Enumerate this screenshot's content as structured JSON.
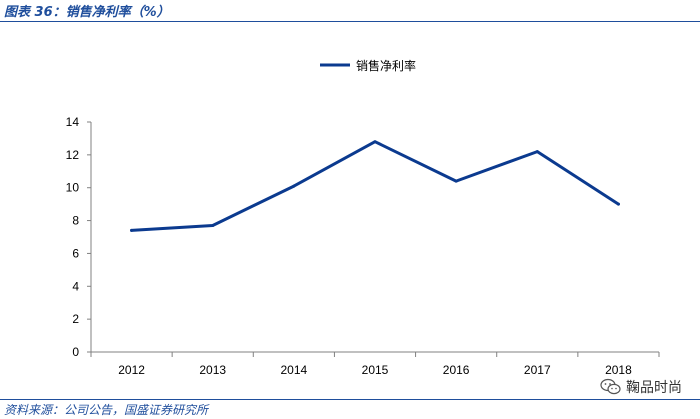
{
  "header": {
    "caption": "图表 36：销售净利率（%）"
  },
  "footer": {
    "source": "资料来源：公司公告，国盛证券研究所",
    "watermark": "鞠品时尚",
    "watermark_icon": "wechat-icon"
  },
  "chart_data": {
    "type": "line",
    "categories": [
      "2012",
      "2013",
      "2014",
      "2015",
      "2016",
      "2017",
      "2018"
    ],
    "series": [
      {
        "name": "销售净利率",
        "values": [
          7.4,
          7.7,
          10.1,
          12.8,
          10.4,
          12.2,
          9.0
        ],
        "color": "#0b3a8f"
      }
    ],
    "ylim": [
      0,
      14
    ],
    "yticks": [
      0,
      2,
      4,
      6,
      8,
      10,
      12,
      14
    ],
    "legend": "top-center",
    "grid": false
  }
}
